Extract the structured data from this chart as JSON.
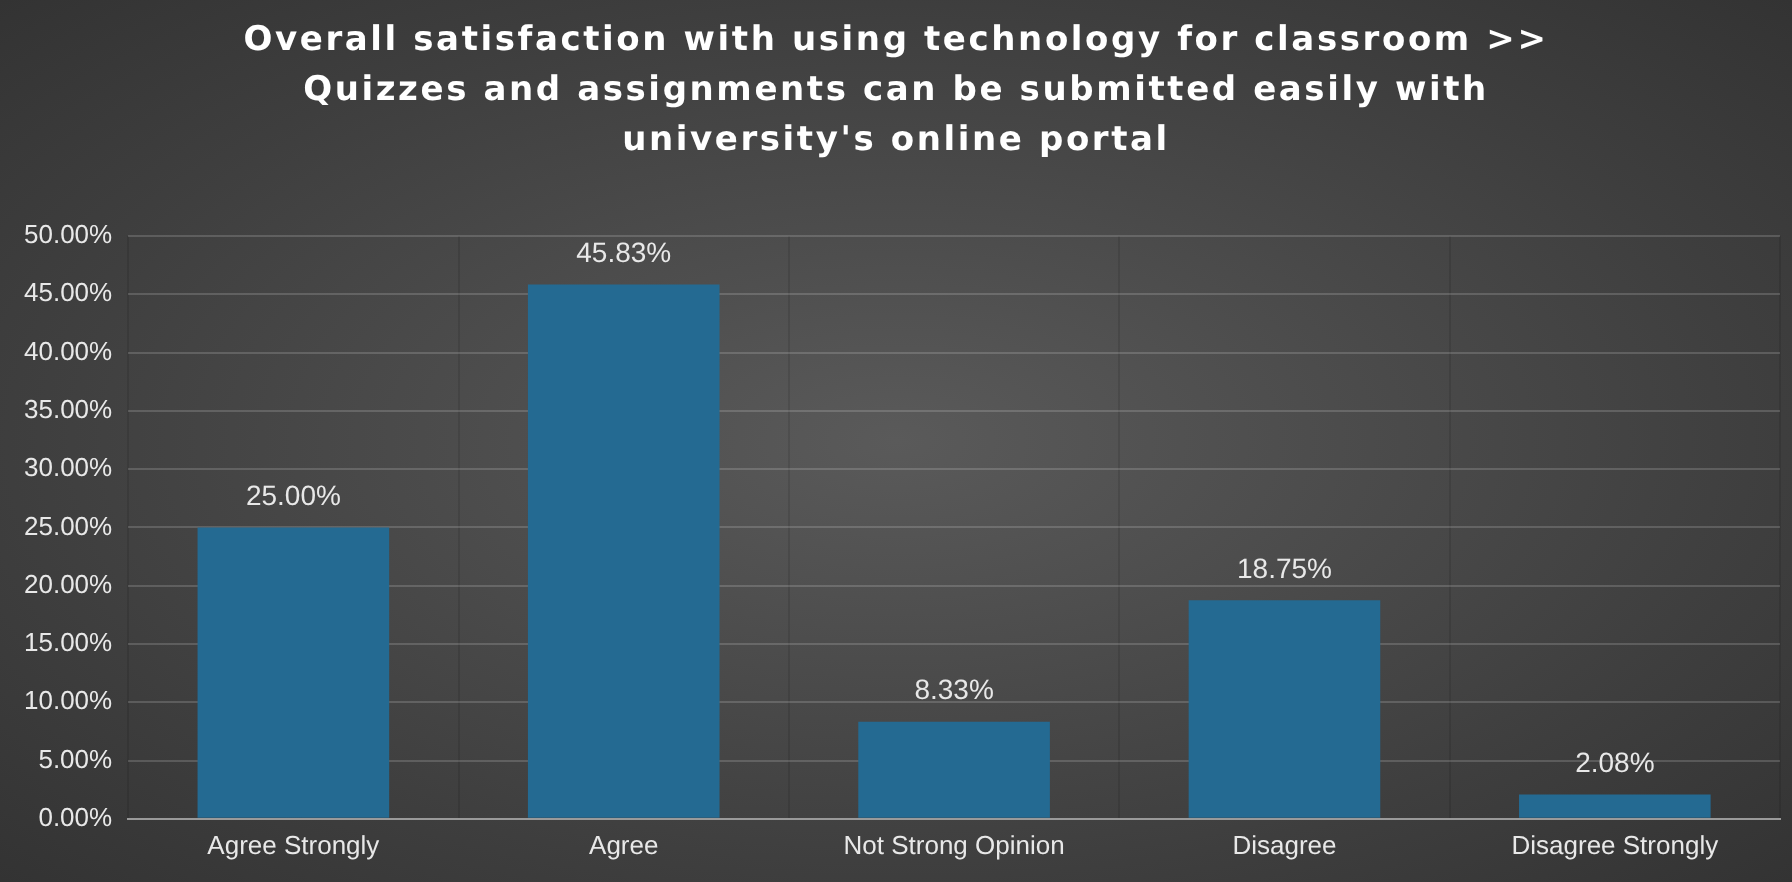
{
  "chart_data": {
    "type": "bar",
    "title": "Overall satisfaction with using technology for classroom >> Quizzes and assignments can be submitted easily with university's online portal",
    "categories": [
      "Agree Strongly",
      "Agree",
      "Not Strong Opinion",
      "Disagree",
      "Disagree Strongly"
    ],
    "values": [
      25,
      45.83,
      8.33,
      18.75,
      2.08
    ],
    "value_labels": [
      "25.00%",
      "45.83%",
      "8.33%",
      "18.75%",
      "2.08%"
    ],
    "color": "#246a92",
    "ylim": [
      0,
      50
    ],
    "yticks": [
      {
        "value": 0,
        "label": "0.00%"
      },
      {
        "value": 5,
        "label": "5.00%"
      },
      {
        "value": 10,
        "label": "10.00%"
      },
      {
        "value": 15,
        "label": "15.00%"
      },
      {
        "value": 20,
        "label": "20.00%"
      },
      {
        "value": 25,
        "label": "25.00%"
      },
      {
        "value": 30,
        "label": "30.00%"
      },
      {
        "value": 35,
        "label": "35.00%"
      },
      {
        "value": 40,
        "label": "40.00%"
      },
      {
        "value": 45,
        "label": "45.00%"
      },
      {
        "value": 50,
        "label": "50.00%"
      }
    ],
    "grid": true
  }
}
